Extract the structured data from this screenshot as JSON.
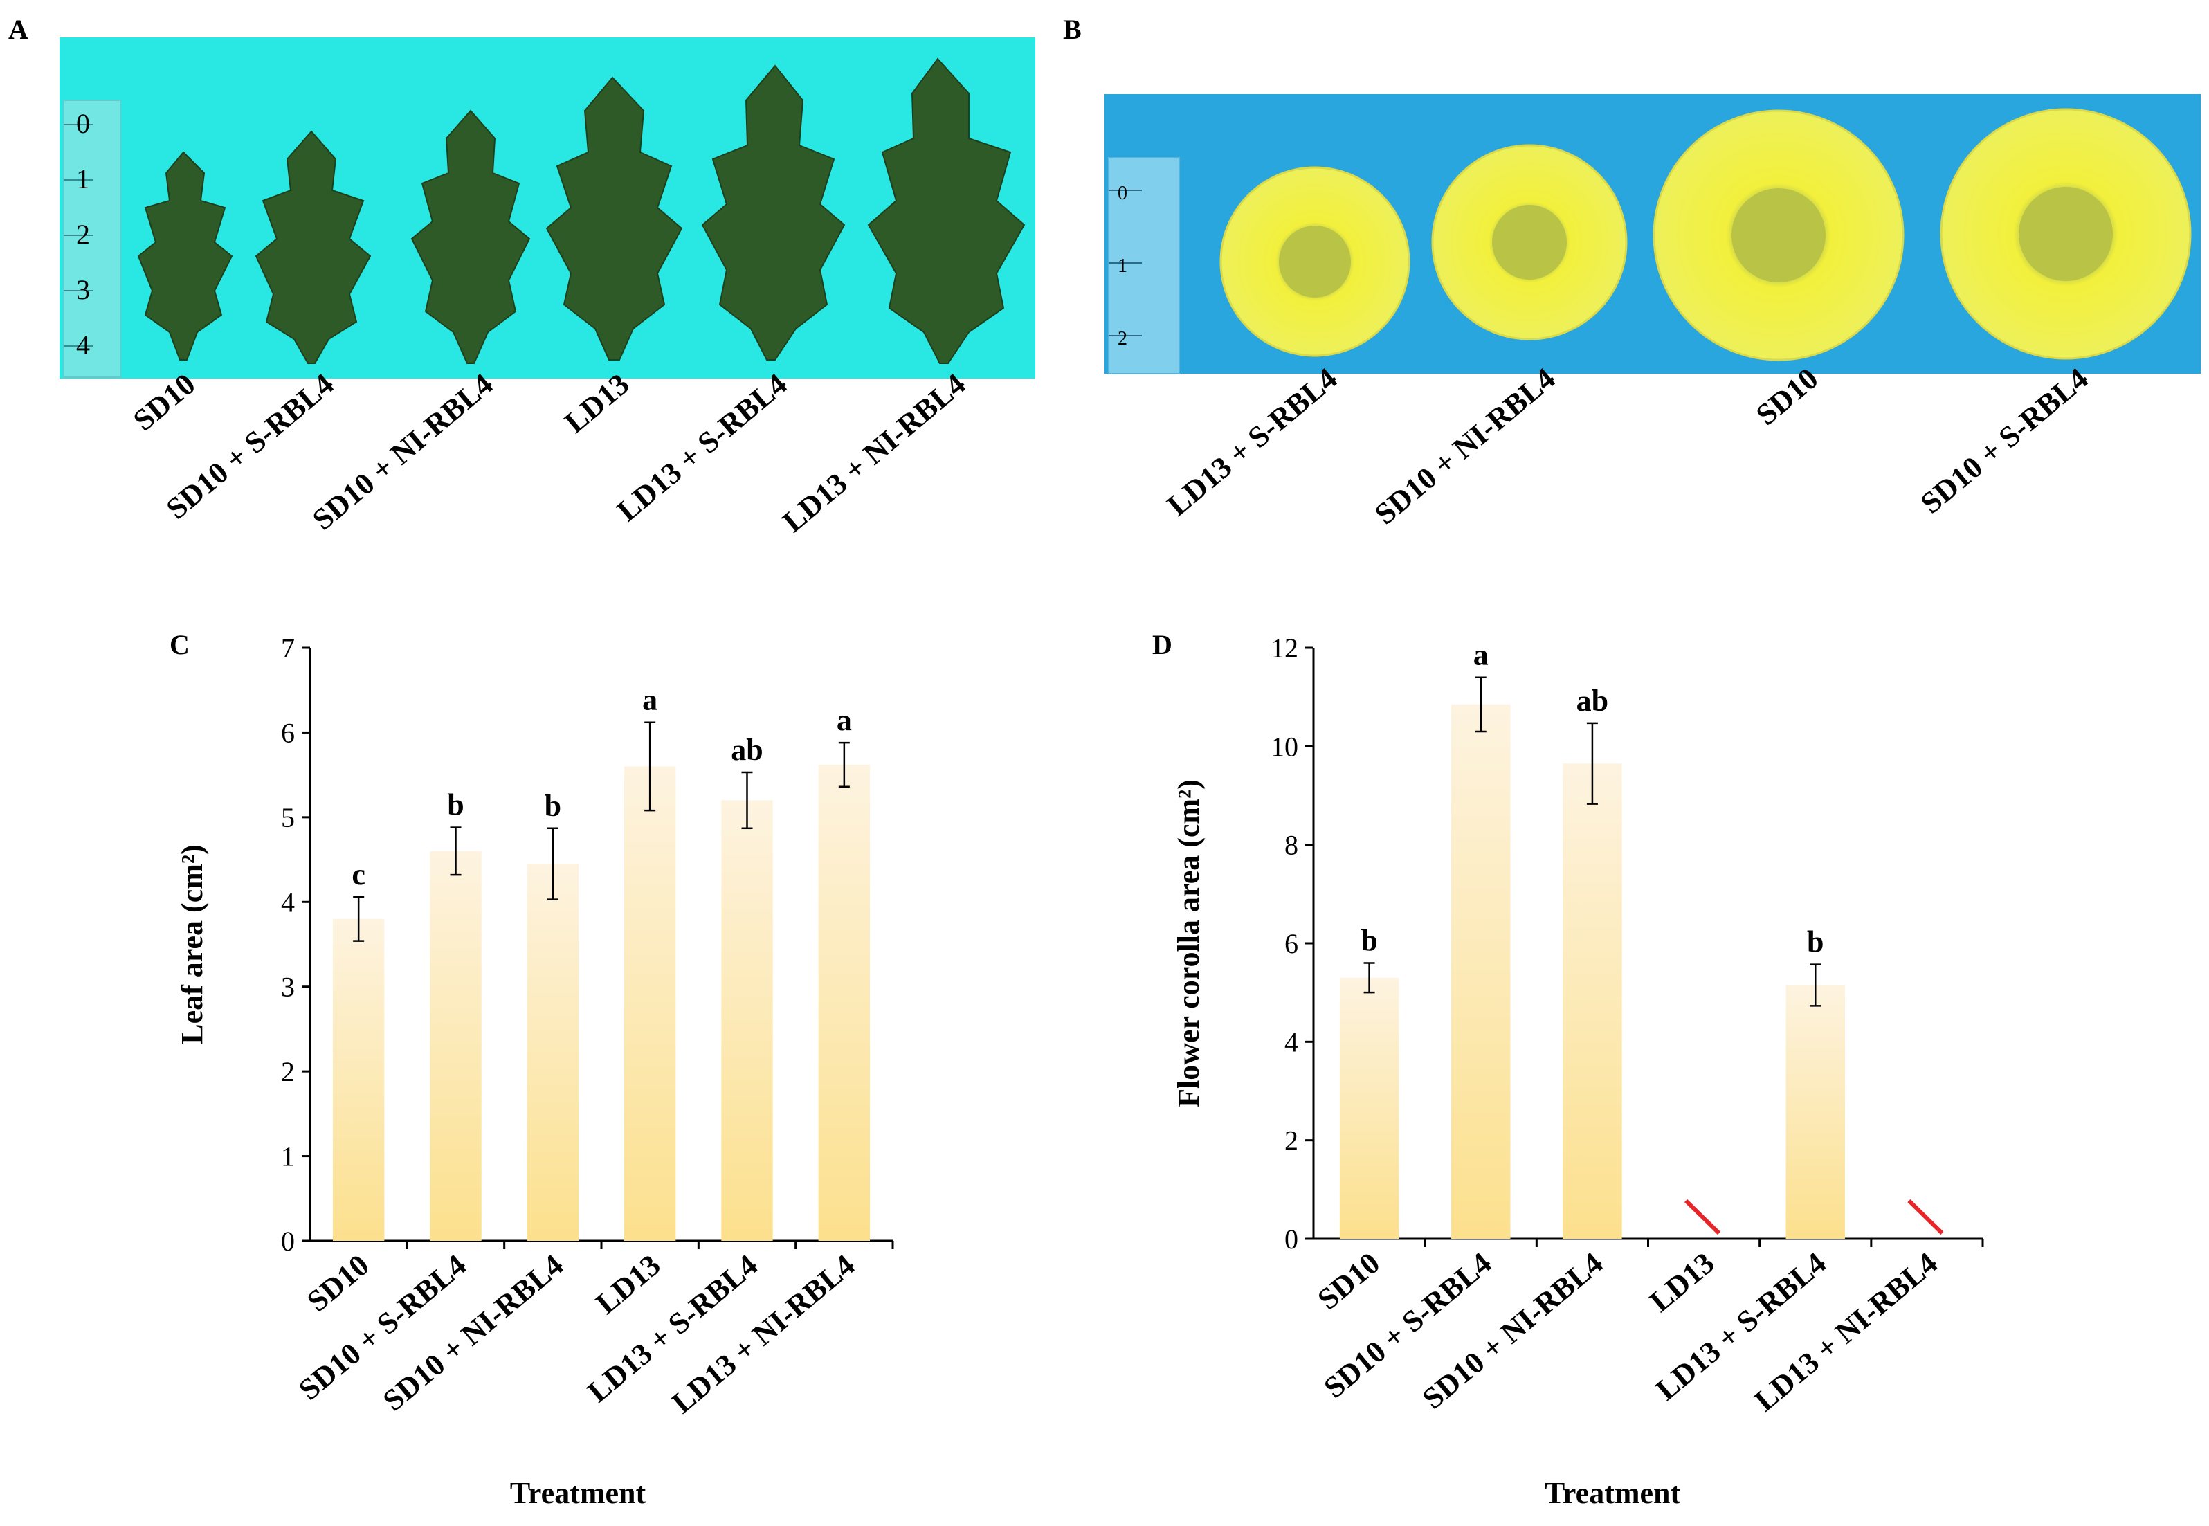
{
  "panels": {
    "A": {
      "letter": "A",
      "photo_subject": "Six chrysanthemum leaves on a cyan background with a ruler",
      "labels": [
        "SD10",
        "SD10 + S-RBL4",
        "SD10 + NI-RBL4",
        "LD13",
        "LD13 + S-RBL4",
        "LD13 + NI-RBL4"
      ],
      "ruler_ticks": [
        "0",
        "1",
        "2",
        "3",
        "4"
      ]
    },
    "B": {
      "letter": "B",
      "photo_subject": "Four yellow chrysanthemum flowers on a blue background with a ruler",
      "labels": [
        "LD13 + S-RBL4",
        "SD10 + NI-RBL4",
        "SD10",
        "SD10 + S-RBL4"
      ],
      "ruler_ticks": [
        "0",
        "1",
        "2"
      ]
    }
  },
  "chart_data": [
    {
      "panel": "C",
      "type": "bar",
      "title": "",
      "xlabel": "Treatment",
      "ylabel": "Leaf area (cm²)",
      "ylim": [
        0,
        7
      ],
      "yticks": [
        "0",
        "1",
        "2",
        "3",
        "4",
        "5",
        "6",
        "7"
      ],
      "categories": [
        "SD10",
        "SD10 + S-RBL4",
        "SD10 + NI-RBL4",
        "LD13",
        "LD13 + S-RBL4",
        "LD13 + NI-RBL4"
      ],
      "values": [
        3.8,
        4.6,
        4.45,
        5.6,
        5.2,
        5.62
      ],
      "errors": [
        0.26,
        0.28,
        0.42,
        0.52,
        0.33,
        0.26
      ],
      "significance": [
        "c",
        "b",
        "b",
        "a",
        "ab",
        "a"
      ],
      "grid": false,
      "bar_color_top": "#fdf3e0",
      "bar_color_bottom": "#fce08d"
    },
    {
      "panel": "D",
      "type": "bar",
      "title": "",
      "xlabel": "Treatment",
      "ylabel": "Flower corolla area (cm²)",
      "ylim": [
        0,
        12
      ],
      "yticks": [
        "0",
        "2",
        "4",
        "6",
        "8",
        "10",
        "12"
      ],
      "categories": [
        "SD10",
        "SD10 + S-RBL4",
        "SD10 + NI-RBL4",
        "LD13",
        "LD13 + S-RBL4",
        "LD13 + NI-RBL4"
      ],
      "values": [
        5.3,
        10.85,
        9.65,
        null,
        5.15,
        null
      ],
      "errors": [
        0.3,
        0.55,
        0.82,
        null,
        0.42,
        null
      ],
      "significance": [
        "b",
        "a",
        "ab",
        "",
        "b",
        ""
      ],
      "no_flowering_marker": "red slash for treatments without flowers",
      "grid": false,
      "bar_color_top": "#fdf3e0",
      "bar_color_bottom": "#fce08d",
      "marker_color": "#e8262a"
    }
  ]
}
